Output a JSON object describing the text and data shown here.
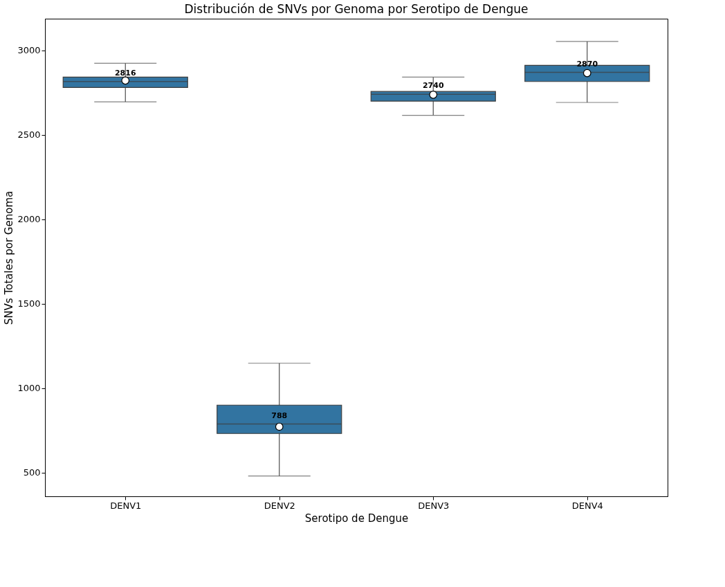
{
  "chart_data": {
    "type": "box",
    "title": "Distribución de SNVs por Genoma por Serotipo de Dengue",
    "xlabel": "Serotipo de Dengue",
    "ylabel": "SNVs Totales por Genoma",
    "categories": [
      "DENV1",
      "DENV2",
      "DENV3",
      "DENV4"
    ],
    "series": [
      {
        "color": "#3274a1",
        "boxes": [
          {
            "low": 2696,
            "q1": 2781,
            "median": 2816,
            "q3": 2842,
            "high": 2924,
            "mean": 2822
          },
          {
            "low": 480,
            "q1": 732,
            "median": 788,
            "q3": 900,
            "high": 1148,
            "mean": 772
          },
          {
            "low": 2616,
            "q1": 2700,
            "median": 2740,
            "q3": 2757,
            "high": 2842,
            "mean": 2738
          },
          {
            "low": 2692,
            "q1": 2816,
            "median": 2870,
            "q3": 2912,
            "high": 3053,
            "mean": 2866
          }
        ]
      }
    ],
    "annotations": [
      {
        "text": "2816",
        "x": "DENV1",
        "y": 2816
      },
      {
        "text": "788",
        "x": "DENV2",
        "y": 788
      },
      {
        "text": "2740",
        "x": "DENV3",
        "y": 2740
      },
      {
        "text": "2870",
        "x": "DENV4",
        "y": 2870
      }
    ],
    "ylim": [
      360,
      3188
    ],
    "yticks": [
      500,
      1000,
      1500,
      2000,
      2500,
      3000
    ],
    "grid": false,
    "marker": "circle"
  }
}
